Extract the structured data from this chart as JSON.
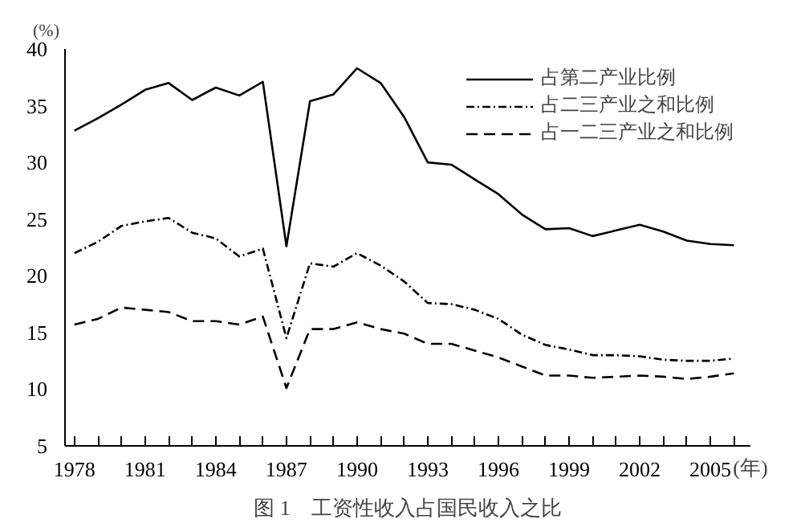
{
  "chart_data": {
    "type": "line",
    "title": "图 1　工资性收入占国民收入之比",
    "xlabel": "(年)",
    "ylabel": "(%)",
    "x": [
      1978,
      1979,
      1980,
      1981,
      1982,
      1983,
      1984,
      1985,
      1986,
      1987,
      1988,
      1989,
      1990,
      1991,
      1992,
      1993,
      1994,
      1995,
      1996,
      1997,
      1998,
      1999,
      2000,
      2001,
      2002,
      2003,
      2004,
      2005,
      2006
    ],
    "series": [
      {
        "name": "占第二产业比例",
        "color": "#000000",
        "line_style": "solid",
        "values": [
          32.8,
          33.9,
          35.1,
          36.4,
          37.0,
          35.5,
          36.6,
          35.9,
          37.1,
          22.6,
          35.4,
          36.0,
          38.3,
          37.0,
          34.0,
          30.0,
          29.8,
          28.5,
          27.2,
          25.4,
          24.1,
          24.2,
          23.5,
          24.0,
          24.5,
          23.9,
          23.1,
          22.8,
          22.7
        ]
      },
      {
        "name": "占二三产业之和比例",
        "color": "#000000",
        "line_style": "dashdot",
        "values": [
          22.0,
          23.0,
          24.4,
          24.8,
          25.1,
          23.8,
          23.3,
          21.7,
          22.4,
          14.5,
          21.1,
          20.8,
          22.0,
          20.9,
          19.5,
          17.6,
          17.5,
          17.0,
          16.2,
          14.8,
          13.9,
          13.5,
          13.0,
          13.0,
          12.9,
          12.6,
          12.5,
          12.5,
          12.7
        ]
      },
      {
        "name": "占一二三产业之和比例",
        "color": "#000000",
        "line_style": "dashed",
        "values": [
          15.7,
          16.2,
          17.2,
          17.0,
          16.8,
          16.0,
          16.0,
          15.7,
          16.4,
          10.1,
          15.3,
          15.3,
          15.9,
          15.3,
          14.9,
          14.0,
          14.0,
          13.4,
          12.8,
          12.0,
          11.2,
          11.2,
          11.0,
          11.1,
          11.2,
          11.1,
          10.9,
          11.1,
          11.4
        ]
      }
    ],
    "xlim": [
      1977.6,
      2006.7
    ],
    "ylim": [
      5,
      40
    ],
    "xticks": [
      1978,
      {
        "value": 1979,
        "label": null
      },
      {
        "value": 1980,
        "label": null
      },
      1981,
      {
        "value": 1982,
        "label": null
      },
      {
        "value": 1983,
        "label": null
      },
      1984,
      {
        "value": 1985,
        "label": null
      },
      {
        "value": 1986,
        "label": null
      },
      1987,
      {
        "value": 1988,
        "label": null
      },
      {
        "value": 1989,
        "label": null
      },
      1990,
      {
        "value": 1991,
        "label": null
      },
      {
        "value": 1992,
        "label": null
      },
      1993,
      {
        "value": 1994,
        "label": null
      },
      {
        "value": 1995,
        "label": null
      },
      1996,
      {
        "value": 1997,
        "label": null
      },
      {
        "value": 1998,
        "label": null
      },
      1999,
      {
        "value": 2000,
        "label": null
      },
      {
        "value": 2001,
        "label": null
      },
      2002,
      {
        "value": 2003,
        "label": null
      },
      {
        "value": 2004,
        "label": null
      },
      2005,
      {
        "value": 2006,
        "label": null
      }
    ],
    "yticks": [
      5,
      10,
      15,
      20,
      25,
      30,
      35,
      40
    ],
    "legend": "top right",
    "grid": false,
    "marker": "none"
  }
}
